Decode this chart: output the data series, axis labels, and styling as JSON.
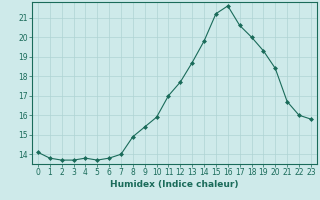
{
  "x": [
    0,
    1,
    2,
    3,
    4,
    5,
    6,
    7,
    8,
    9,
    10,
    11,
    12,
    13,
    14,
    15,
    16,
    17,
    18,
    19,
    20,
    21,
    22,
    23
  ],
  "y": [
    14.1,
    13.8,
    13.7,
    13.7,
    13.8,
    13.7,
    13.8,
    14.0,
    14.9,
    15.4,
    15.9,
    17.0,
    17.7,
    18.7,
    19.8,
    21.2,
    21.6,
    20.6,
    20.0,
    19.3,
    18.4,
    16.7,
    16.0,
    15.8
  ],
  "xlim": [
    -0.5,
    23.5
  ],
  "ylim": [
    13.5,
    21.8
  ],
  "yticks": [
    14,
    15,
    16,
    17,
    18,
    19,
    20,
    21
  ],
  "xticks": [
    0,
    1,
    2,
    3,
    4,
    5,
    6,
    7,
    8,
    9,
    10,
    11,
    12,
    13,
    14,
    15,
    16,
    17,
    18,
    19,
    20,
    21,
    22,
    23
  ],
  "xlabel": "Humidex (Indice chaleur)",
  "line_color": "#1a6b5a",
  "marker": "D",
  "marker_size": 2.0,
  "bg_color": "#ceeaea",
  "grid_color": "#afd4d4",
  "spine_color": "#1a6b5a",
  "tick_fontsize": 5.5,
  "xlabel_fontsize": 6.5
}
